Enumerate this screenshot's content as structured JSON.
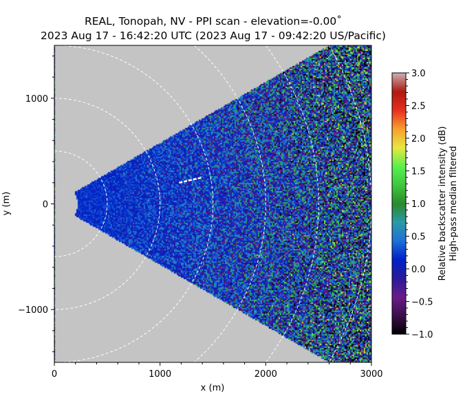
{
  "chart_data": {
    "type": "heatmap",
    "title_line1": "REAL, Tonopah, NV - PPI scan - elevation=-0.00˚",
    "title_line2": "2023 Aug 17 - 16:42:20 UTC (2023 Aug 17 - 09:42:20 US/Pacific)",
    "xlabel": "x (m)",
    "ylabel": "y (m)",
    "xlim": [
      0,
      3000
    ],
    "ylim": [
      -1500,
      1500
    ],
    "xticks": [
      0,
      1000,
      2000,
      3000
    ],
    "xtick_labels": [
      "0",
      "1000",
      "2000",
      "3000"
    ],
    "yticks": [
      1000,
      0,
      -1000
    ],
    "ytick_labels": [
      "1000",
      "0",
      "−1000"
    ],
    "minor_tick_step": 200,
    "range_rings_m": [
      500,
      1000,
      1500,
      2000,
      2500,
      3000
    ],
    "sector_azimuth_deg": [
      -30,
      30
    ],
    "min_range_m": 220,
    "background_color": "#c4c4c4",
    "colorbar": {
      "label_line1": "Relative backscatter intensity (dB)",
      "label_line2": "High-pass median filtered",
      "range": [
        -1.0,
        3.0
      ],
      "ticks": [
        3.0,
        2.5,
        2.0,
        1.5,
        1.0,
        0.5,
        0.0,
        -0.5,
        -1.0
      ],
      "tick_labels": [
        "3.0",
        "2.5",
        "2.0",
        "1.5",
        "1.0",
        "0.5",
        "0.0",
        "−0.5",
        "−1.0"
      ],
      "colors": [
        "#000000",
        "#3a0f4a",
        "#6a1b8a",
        "#2a1a9a",
        "#0020c8",
        "#1e70d8",
        "#2a9aaa",
        "#2a8a2a",
        "#3fc83f",
        "#5af050",
        "#e8e840",
        "#f8a030",
        "#e83020",
        "#b01810",
        "#c8b0b0"
      ]
    }
  }
}
